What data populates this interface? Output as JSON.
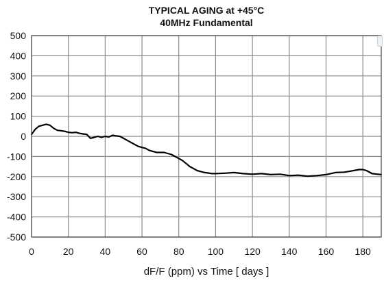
{
  "chart_data": {
    "type": "line",
    "title": "TYPICAL  AGING at +45°C",
    "subtitle": "40MHz Fundamental",
    "xlabel": "dF/F (ppm)  vs  Time [ days  ]",
    "ylabel": "",
    "xlim": [
      0,
      190
    ],
    "ylim": [
      -500,
      500
    ],
    "x_ticks": [
      "0",
      "20",
      "40",
      "60",
      "80",
      "100",
      "120",
      "140",
      "160",
      "180"
    ],
    "y_ticks": [
      "500",
      "400",
      "300",
      "200",
      "100",
      "0",
      "-100",
      "-200",
      "-300",
      "-400",
      "-500"
    ],
    "grid": true,
    "series": [
      {
        "x": [
          0,
          2,
          4,
          6,
          8,
          10,
          12,
          14,
          16,
          18,
          20,
          22,
          24,
          26,
          28,
          30,
          32,
          34,
          36,
          38,
          40,
          42,
          44,
          46,
          48,
          50,
          52,
          54,
          56,
          58,
          60,
          62,
          64,
          66,
          68,
          70,
          72,
          74,
          76,
          78,
          80,
          82,
          84,
          86,
          88,
          90,
          92,
          94,
          96,
          98,
          100,
          105,
          110,
          115,
          120,
          125,
          130,
          135,
          140,
          145,
          150,
          155,
          160,
          165,
          170,
          175,
          178,
          180,
          182,
          185,
          188,
          190
        ],
        "y": [
          10,
          35,
          50,
          55,
          60,
          55,
          40,
          30,
          28,
          25,
          20,
          18,
          20,
          15,
          12,
          10,
          -10,
          -5,
          0,
          -5,
          0,
          -3,
          5,
          2,
          0,
          -10,
          -20,
          -30,
          -40,
          -50,
          -55,
          -60,
          -70,
          -75,
          -80,
          -80,
          -80,
          -85,
          -90,
          -100,
          -110,
          -120,
          -135,
          -150,
          -160,
          -170,
          -175,
          -180,
          -182,
          -185,
          -185,
          -183,
          -180,
          -185,
          -188,
          -185,
          -190,
          -188,
          -195,
          -193,
          -198,
          -195,
          -190,
          -180,
          -178,
          -170,
          -165,
          -165,
          -170,
          -185,
          -188,
          -190
        ]
      }
    ]
  }
}
